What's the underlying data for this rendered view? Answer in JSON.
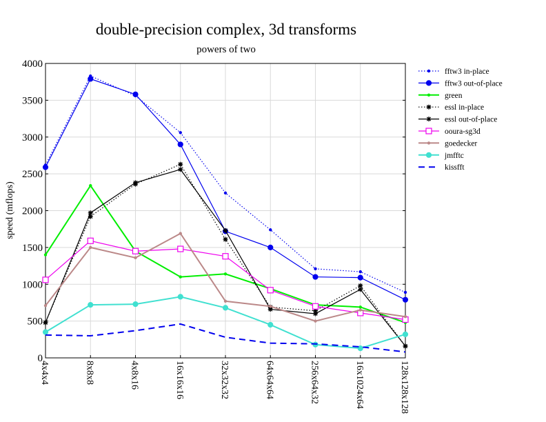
{
  "chart_data": {
    "type": "line",
    "title": "double-precision complex, 3d transforms",
    "subtitle": "powers of two",
    "xlabel": "",
    "ylabel": "speed (mflops)",
    "ylim": [
      0,
      4000
    ],
    "yticks": [
      0,
      500,
      1000,
      1500,
      2000,
      2500,
      3000,
      3500,
      4000
    ],
    "grid": true,
    "legend_position": "right",
    "categories": [
      "4x4x4",
      "8x8x8",
      "4x8x16",
      "16x16x16",
      "32x32x32",
      "64x64x64",
      "256x64x32",
      "16x1024x64",
      "128x128x128"
    ],
    "series": [
      {
        "name": "fftw3 in-place",
        "color": "#0000ee",
        "dash": "dotted",
        "marker": "dot-small",
        "values": [
          2620,
          3830,
          3560,
          3060,
          2240,
          1740,
          1210,
          1170,
          890
        ]
      },
      {
        "name": "fftw3 out-of-place",
        "color": "#0000ee",
        "dash": "solid",
        "marker": "dot",
        "values": [
          2590,
          3790,
          3580,
          2900,
          1720,
          1500,
          1100,
          1090,
          790
        ]
      },
      {
        "name": "green",
        "color": "#00ee00",
        "dash": "solid-thick",
        "marker": "dot-small",
        "values": [
          1400,
          2340,
          1450,
          1100,
          1140,
          940,
          720,
          690,
          480
        ]
      },
      {
        "name": "essl in-place",
        "color": "#000000",
        "dash": "dotted",
        "marker": "star",
        "values": [
          480,
          1920,
          2360,
          2630,
          1610,
          690,
          640,
          980,
          160
        ]
      },
      {
        "name": "essl out-of-place",
        "color": "#000000",
        "dash": "solid",
        "marker": "star",
        "values": [
          480,
          1970,
          2380,
          2560,
          1730,
          660,
          600,
          930,
          160
        ]
      },
      {
        "name": "ooura-sg3d",
        "color": "#ee00ee",
        "dash": "solid",
        "marker": "square",
        "values": [
          1060,
          1590,
          1450,
          1480,
          1380,
          920,
          700,
          610,
          520
        ]
      },
      {
        "name": "goedecker",
        "color": "#bb8888",
        "dash": "solid-thick",
        "marker": "dot-small",
        "values": [
          710,
          1500,
          1360,
          1690,
          770,
          700,
          500,
          650,
          560
        ]
      },
      {
        "name": "jmfftc",
        "color": "#40e0d0",
        "dash": "solid-thick",
        "marker": "dot",
        "values": [
          350,
          720,
          730,
          830,
          680,
          450,
          180,
          130,
          320
        ]
      },
      {
        "name": "kissfft",
        "color": "#0000ee",
        "dash": "dashed",
        "marker": "none",
        "values": [
          310,
          300,
          370,
          460,
          280,
          200,
          190,
          150,
          80
        ]
      }
    ]
  }
}
